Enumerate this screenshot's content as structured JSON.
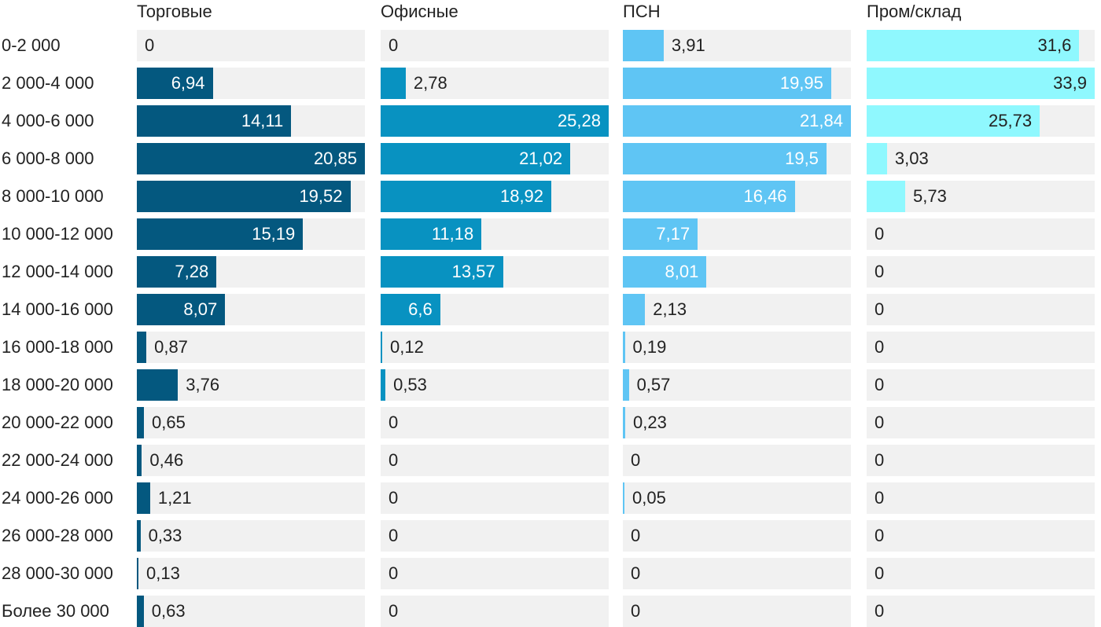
{
  "chart_data": {
    "type": "bar",
    "orientation": "horizontal",
    "layout": "small-multiples",
    "categories": [
      "0-2 000",
      "2 000-4 000",
      "4 000-6 000",
      "6 000-8 000",
      "8 000-10 000",
      "10 000-12 000",
      "12 000-14 000",
      "14 000-16 000",
      "16 000-18 000",
      "18 000-20 000",
      "20 000-22 000",
      "22 000-24 000",
      "24 000-26 000",
      "26 000-28 000",
      "28 000-30 000",
      "Более 30 000"
    ],
    "series": [
      {
        "name": "Торговые",
        "color": "#04587f",
        "max": 20.85,
        "values": [
          0,
          6.94,
          14.11,
          20.85,
          19.52,
          15.19,
          7.28,
          8.07,
          0.87,
          3.76,
          0.65,
          0.46,
          1.21,
          0.33,
          0.13,
          0.63
        ],
        "labels": [
          "0",
          "6,94",
          "14,11",
          "20,85",
          "19,52",
          "15,19",
          "7,28",
          "8,07",
          "0,87",
          "3,76",
          "0,65",
          "0,46",
          "1,21",
          "0,33",
          "0,13",
          "0,63"
        ]
      },
      {
        "name": "Офисные",
        "color": "#0892c1",
        "max": 25.28,
        "values": [
          0,
          2.78,
          25.28,
          21.02,
          18.92,
          11.18,
          13.57,
          6.6,
          0.12,
          0.53,
          0,
          0,
          0,
          0,
          0,
          0
        ],
        "labels": [
          "0",
          "2,78",
          "25,28",
          "21,02",
          "18,92",
          "11,18",
          "13,57",
          "6,6",
          "0,12",
          "0,53",
          "0",
          "0",
          "0",
          "0",
          "0",
          "0"
        ]
      },
      {
        "name": "ПСН",
        "color": "#5fc5f4",
        "max": 21.84,
        "values": [
          3.91,
          19.95,
          21.84,
          19.5,
          16.46,
          7.17,
          8.01,
          2.13,
          0.19,
          0.57,
          0.23,
          0,
          0.05,
          0,
          0,
          0
        ],
        "labels": [
          "3,91",
          "19,95",
          "21,84",
          "19,5",
          "16,46",
          "7,17",
          "8,01",
          "2,13",
          "0,19",
          "0,57",
          "0,23",
          "0",
          "0,05",
          "0",
          "0",
          "0"
        ]
      },
      {
        "name": "Пром/склад",
        "color": "#8ff8fe",
        "max": 33.9,
        "values": [
          31.6,
          33.9,
          25.73,
          3.03,
          5.73,
          0,
          0,
          0,
          0,
          0,
          0,
          0,
          0,
          0,
          0,
          0
        ],
        "labels": [
          "31,6",
          "33,9",
          "25,73",
          "3,03",
          "5,73",
          "0",
          "0",
          "0",
          "0",
          "0",
          "0",
          "0",
          "0",
          "0",
          "0",
          "0"
        ]
      }
    ],
    "xlabel": "",
    "ylabel": "",
    "legend": "none",
    "grid": false
  }
}
